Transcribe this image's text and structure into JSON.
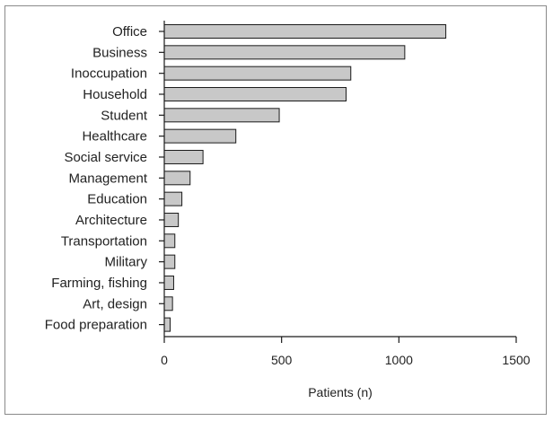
{
  "chart_data": {
    "type": "bar",
    "orientation": "horizontal",
    "categories": [
      "Office",
      "Business",
      "Inoccupation",
      "Household",
      "Student",
      "Healthcare",
      "Social service",
      "Management",
      "Education",
      "Architecture",
      "Transportation",
      "Military",
      "Farming, fishing",
      "Art, design",
      "Food preparation"
    ],
    "values": [
      1200,
      1025,
      795,
      775,
      490,
      305,
      165,
      110,
      75,
      60,
      45,
      45,
      40,
      35,
      25
    ],
    "xlabel": "Patients (n)",
    "ylabel": "",
    "xlim": [
      0,
      1500
    ],
    "xticks": [
      0,
      500,
      1000,
      1500
    ],
    "grid": false,
    "colors": {
      "bar_fill": "#c8c8c8",
      "bar_stroke": "#1a1a1a",
      "axis": "#1a1a1a",
      "frame": "#8a8a8a"
    }
  }
}
